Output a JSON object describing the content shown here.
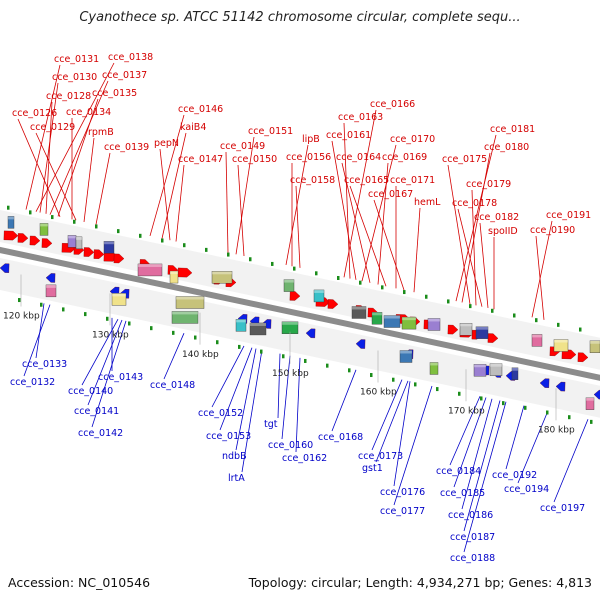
{
  "title": "Cyanothece sp. ATCC 51142 chromosome circular, complete sequ...",
  "footer": {
    "accession": "Accession: NC_010546",
    "summary": "Topology: circular; Length: 4,934,271 bp; Genes: 4,813"
  },
  "colors": {
    "backbone": "#8c8c8c",
    "top_labels": "#d40000",
    "bottom_labels": "#0000c8",
    "forward_gene": "#ff0000",
    "reverse_gene": "#0a20e6",
    "tick": "#1a8c1a"
  },
  "scale_ticks": [
    "120 kbp",
    "130 kbp",
    "140 kbp",
    "150 kbp",
    "160 kbp",
    "170 kbp",
    "180 kbp"
  ],
  "top_labels": [
    "cce_0131",
    "cce_0138",
    "cce_0130",
    "cce_0137",
    "cce_0128",
    "cce_0135",
    "cce_0126",
    "cce_0134",
    "cce_0129",
    "rpmB",
    "cce_0139",
    "cce_0146",
    "kaiB4",
    "pepN",
    "cce_0147",
    "cce_0149",
    "cce_0151",
    "cce_0150",
    "lipB",
    "cce_0156",
    "cce_0158",
    "cce_0166",
    "cce_0163",
    "cce_0161",
    "cce_0170",
    "cce_0164",
    "cce_0169",
    "cce_0165",
    "cce_0171",
    "cce_0167",
    "hemL",
    "cce_0181",
    "cce_0180",
    "cce_0175",
    "cce_0179",
    "cce_0178",
    "cce_0182",
    "spoIID",
    "cce_0191",
    "cce_0190"
  ],
  "bottom_labels": [
    "cce_0133",
    "cce_0132",
    "cce_0143",
    "cce_0140",
    "cce_0141",
    "cce_0142",
    "cce_0148",
    "cce_0152",
    "cce_0153",
    "ndbB",
    "lrtA",
    "tgt",
    "cce_0160",
    "cce_0162",
    "cce_0168",
    "cce_0173",
    "gst1",
    "cce_0176",
    "cce_0177",
    "cce_0184",
    "cce_0185",
    "cce_0186",
    "cce_0187",
    "cce_0188",
    "cce_0192",
    "cce_0194",
    "cce_0197"
  ]
}
